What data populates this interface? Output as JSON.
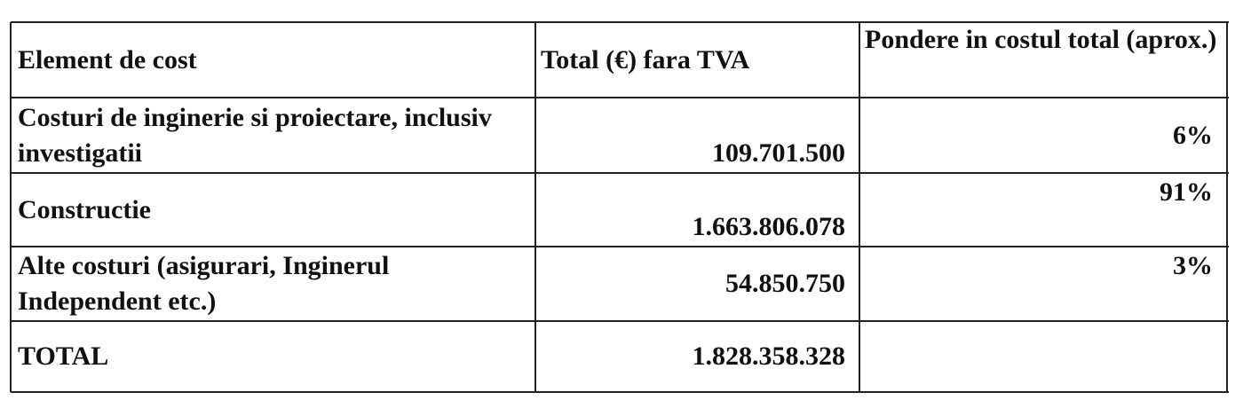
{
  "table": {
    "header": [
      "Element de cost",
      "Total (€) fara TVA",
      "Pondere in costul total (aprox.)"
    ],
    "rows": [
      [
        "Costuri de inginerie si proiectare, inclusiv investigatii",
        "109.701.500",
        "6%"
      ],
      [
        "Constructie",
        "1.663.806.078",
        "91%"
      ],
      [
        "Alte costuri (asigurari, Inginerul Independent etc.)",
        "54.850.750",
        "3%"
      ],
      [
        "TOTAL",
        "1.828.358.328"
      ]
    ]
  }
}
